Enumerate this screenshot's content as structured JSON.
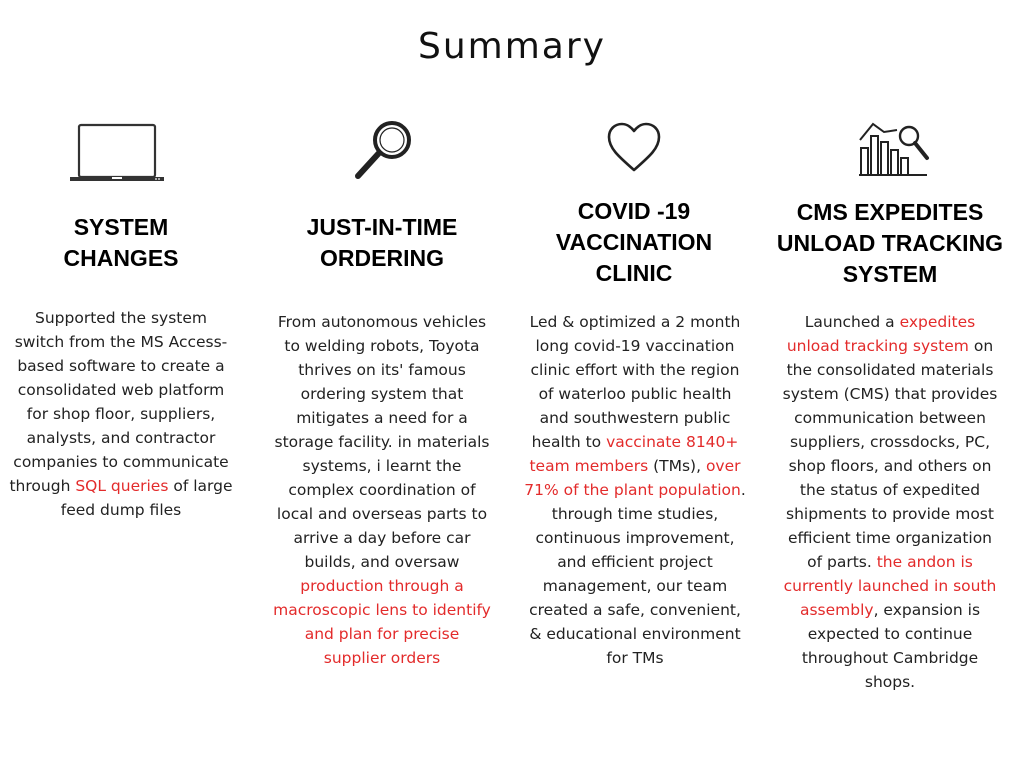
{
  "page": {
    "title": "Summary"
  },
  "colors": {
    "accent": "#e32b2b",
    "text": "#222222"
  },
  "columns": [
    {
      "icon": "laptop-icon",
      "heading": [
        "SYSTEM",
        "CHANGES"
      ],
      "body": [
        {
          "text": "Supported the system switch from the MS Access-based software to create a consolidated web platform for shop floor, suppliers, analysts, and contractor companies to communicate through ",
          "highlight": false
        },
        {
          "text": "SQL queries",
          "highlight": true
        },
        {
          "text": " of large feed dump files",
          "highlight": false
        }
      ]
    },
    {
      "icon": "magnifying-glass-icon",
      "heading": [
        "JUST-IN-TIME",
        "ORDERING"
      ],
      "body": [
        {
          "text": "From autonomous vehicles to welding robots, Toyota thrives on its' famous ordering system that mitigates a need for a storage facility. in materials systems, i learnt the complex coordination of local and overseas parts to arrive a day before car builds, and oversaw ",
          "highlight": false
        },
        {
          "text": "production through a macroscopic lens to identify and plan for precise supplier orders",
          "highlight": true
        }
      ]
    },
    {
      "icon": "heart-icon",
      "heading": [
        "COVID -19",
        "VACCINATION",
        "CLINIC"
      ],
      "body": [
        {
          "text": "Led & optimized a 2 month long covid-19 vaccination clinic effort with the region of waterloo public health and southwestern public health to ",
          "highlight": false
        },
        {
          "text": "vaccinate 8140+ team members",
          "highlight": true
        },
        {
          "text": " (TMs), ",
          "highlight": false
        },
        {
          "text": "over 71% of the plant population",
          "highlight": true
        },
        {
          "text": ". through time studies, continuous improvement, and efficient project management, our team created a safe, convenient, & educational environment for TMs",
          "highlight": false
        }
      ]
    },
    {
      "icon": "bar-chart-search-icon",
      "heading": [
        "CMS EXPEDITES",
        "UNLOAD TRACKING",
        "SYSTEM"
      ],
      "body": [
        {
          "text": "Launched a ",
          "highlight": false
        },
        {
          "text": "expedites unload tracking system",
          "highlight": true
        },
        {
          "text": " on the consolidated materials system (CMS) that provides communication between suppliers, crossdocks, PC, shop floors, and others on the status of expedited shipments to provide most efficient time organization of parts. ",
          "highlight": false
        },
        {
          "text": "the andon is currently launched in south assembly",
          "highlight": true
        },
        {
          "text": ", expansion is expected to continue throughout Cambridge shops.",
          "highlight": false
        }
      ]
    }
  ]
}
